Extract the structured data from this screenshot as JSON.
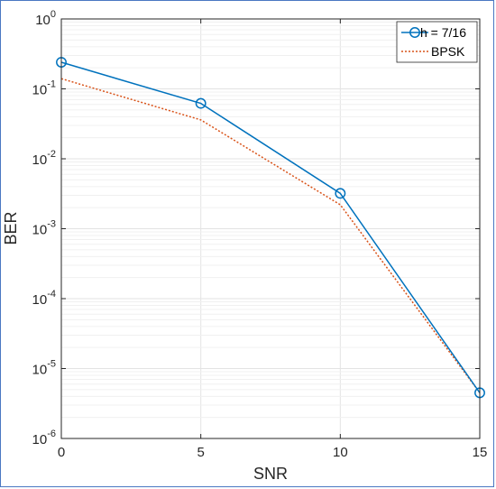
{
  "chart_data": {
    "type": "line",
    "title": "",
    "xlabel": "SNR",
    "ylabel": "BER",
    "x_scale": "linear",
    "y_scale": "log",
    "xlim": [
      0,
      15
    ],
    "ylim": [
      1e-06,
      1
    ],
    "xticks": [
      0,
      5,
      10,
      15
    ],
    "xtick_labels": [
      "0",
      "5",
      "10",
      "15"
    ],
    "yticks": [
      1e-06,
      1e-05,
      0.0001,
      0.001,
      0.01,
      0.1,
      1
    ],
    "ytick_labels": [
      {
        "base": "10",
        "exp": "-6"
      },
      {
        "base": "10",
        "exp": "-5"
      },
      {
        "base": "10",
        "exp": "-4"
      },
      {
        "base": "10",
        "exp": "-3"
      },
      {
        "base": "10",
        "exp": "-2"
      },
      {
        "base": "10",
        "exp": "-1"
      },
      {
        "base": "10",
        "exp": "0"
      }
    ],
    "grid": true,
    "legend_position": "top-right",
    "series": [
      {
        "name": "h = 7/16",
        "color": "#0072BD",
        "line_style": "solid",
        "marker": "circle",
        "x": [
          0,
          5,
          10,
          15
        ],
        "y": [
          0.24,
          0.062,
          0.0032,
          4.5e-06
        ]
      },
      {
        "name": "BPSK",
        "color": "#D95319",
        "line_style": "dotted",
        "marker": "none",
        "x": [
          0,
          5,
          10,
          15
        ],
        "y": [
          0.14,
          0.036,
          0.0022,
          4.5e-06
        ]
      }
    ]
  }
}
